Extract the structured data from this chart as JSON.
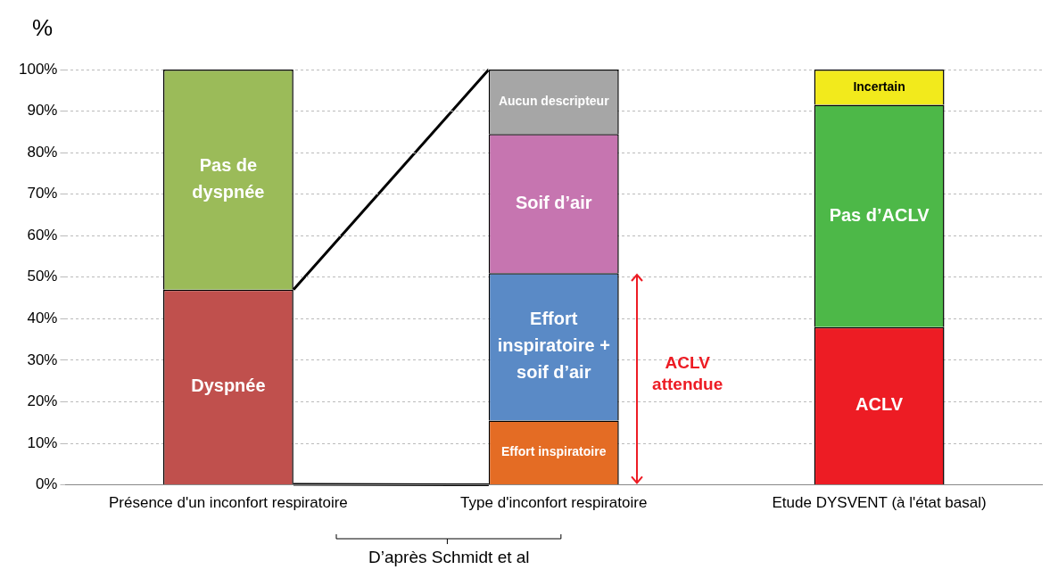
{
  "chart_data": {
    "type": "bar",
    "stacked": true,
    "ylabel": "%",
    "categories": [
      "Présence d'un inconfort respiratoire",
      "Type d'inconfort respiratoire",
      "Etude DYSVENT (à l'état basal)"
    ],
    "series": [
      {
        "name": "Dyspnée",
        "color": "#c0504d",
        "values": [
          47,
          null,
          null
        ]
      },
      {
        "name": "Pas de dyspnée",
        "color": "#9bbb59",
        "values": [
          53,
          null,
          null
        ]
      },
      {
        "name": "Effort inspiratoire",
        "color": "#e46c24",
        "values": [
          null,
          15.5,
          null
        ]
      },
      {
        "name": "Effort inspiratoire + soif d’air",
        "color": "#5a8ac6",
        "values": [
          null,
          35.5,
          null
        ]
      },
      {
        "name": "Soif d’air",
        "color": "#c675b0",
        "values": [
          null,
          33.5,
          null
        ]
      },
      {
        "name": "Aucun descripteur",
        "color": "#a6a6a6",
        "values": [
          null,
          15.5,
          null
        ]
      },
      {
        "name": "ACLV",
        "color": "#ed1c24",
        "values": [
          null,
          null,
          38
        ]
      },
      {
        "name": "Pas d’ACLV",
        "color": "#4db848",
        "values": [
          null,
          null,
          53.5
        ]
      },
      {
        "name": "Incertain",
        "color": "#f2ea1c",
        "values": [
          null,
          null,
          8.5
        ]
      }
    ],
    "ylim": [
      0,
      100
    ],
    "yticks": [
      {
        "value": 0,
        "label": "0%"
      },
      {
        "value": 10,
        "label": "10%"
      },
      {
        "value": 20,
        "label": "20%"
      },
      {
        "value": 30,
        "label": "30%"
      },
      {
        "value": 40,
        "label": "40%"
      },
      {
        "value": 50,
        "label": "50%"
      },
      {
        "value": 60,
        "label": "60%"
      },
      {
        "value": 70,
        "label": "70%"
      },
      {
        "value": 80,
        "label": "80%"
      },
      {
        "value": 90,
        "label": "90%"
      },
      {
        "value": 100,
        "label": "100%"
      }
    ],
    "grid": "y",
    "legend": false,
    "annotations": [
      "ACLV attendue",
      "D’après Schmidt et al"
    ]
  }
}
